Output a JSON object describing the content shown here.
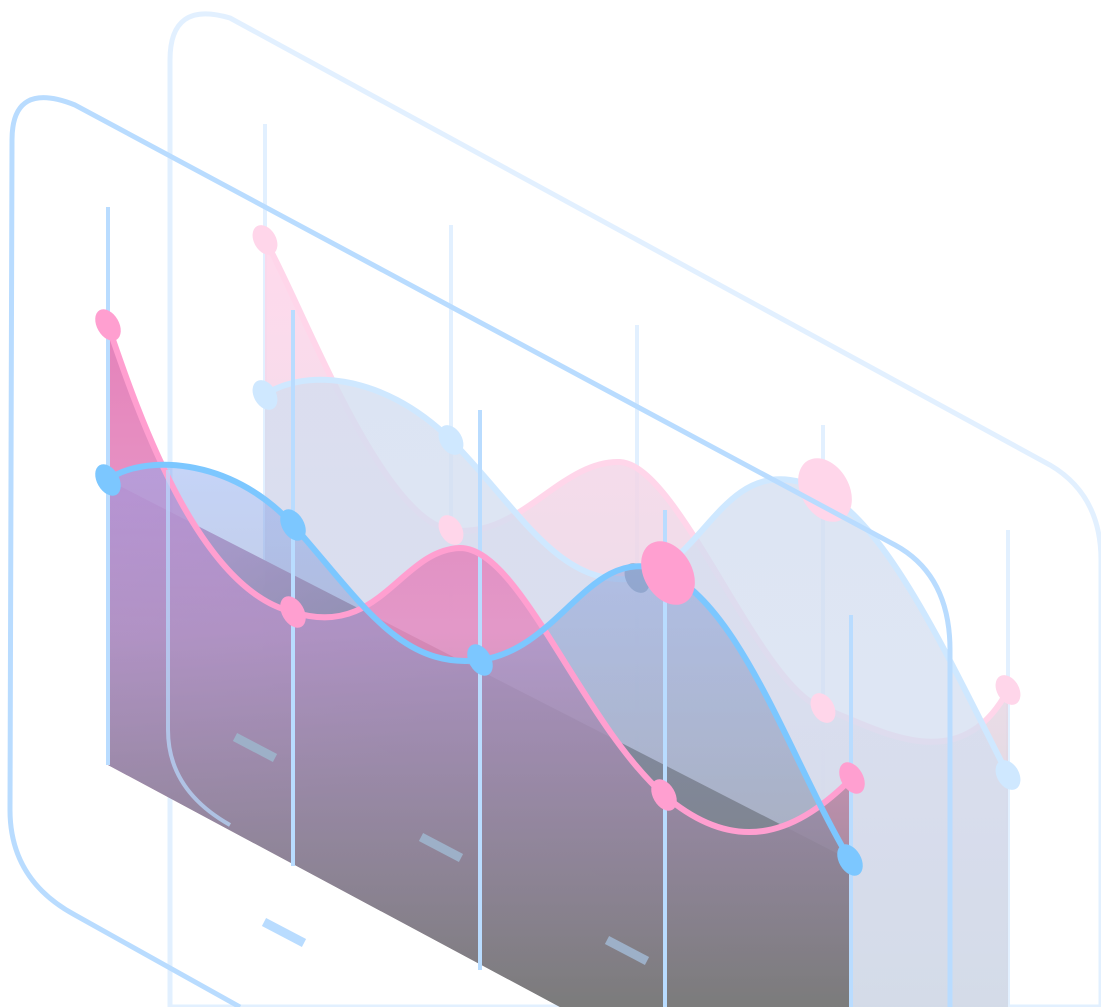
{
  "scene": {
    "description_visible_text": "",
    "colors": {
      "pink": "#ff9fd0",
      "pink_light": "#ffd6ea",
      "blue": "#7cc7ff",
      "blue_light": "#cfe8ff",
      "frame_blue": "#b9dcff",
      "frame_blue_light": "#e2f0ff",
      "gray": "#7b7b7b",
      "gray_light": "#cfcfcf",
      "tab_gray": "#9db0c8"
    }
  }
}
